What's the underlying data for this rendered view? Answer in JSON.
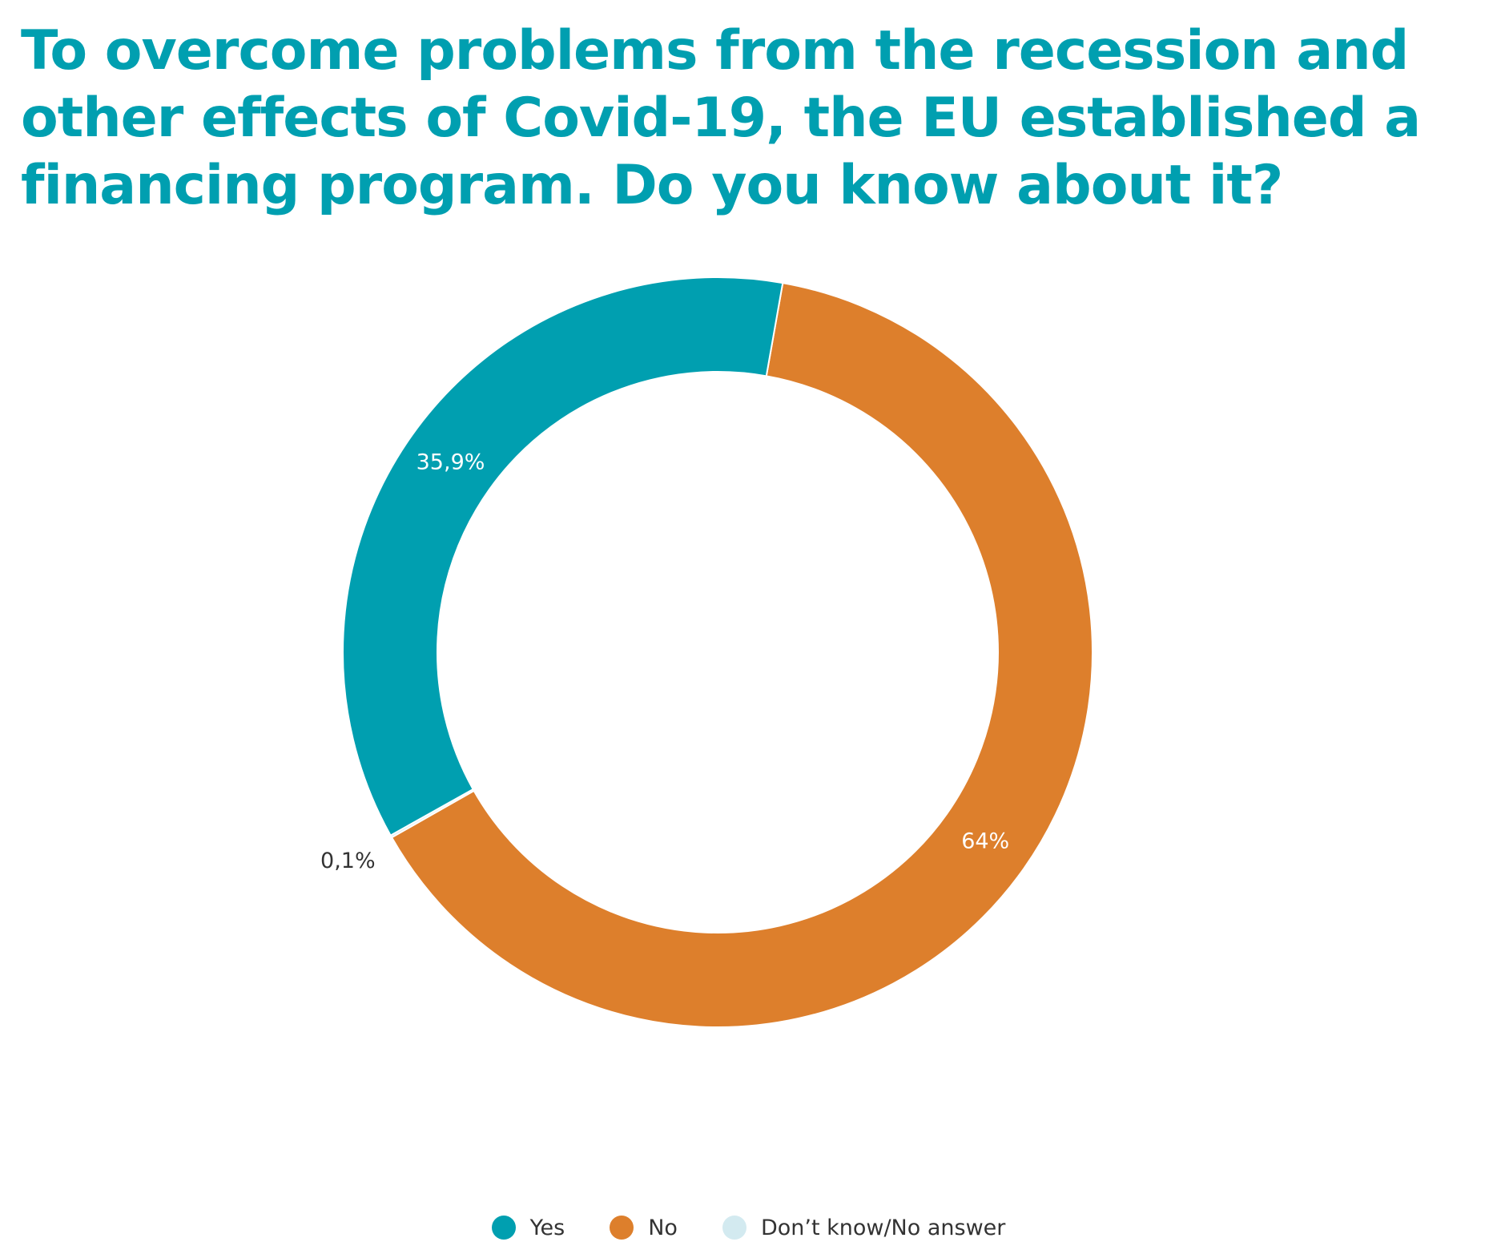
{
  "chart_data": {
    "type": "pie",
    "title": "To overcome problems from the recession and other effects of Covid-19, the EU established a financing program. Do you know about it?",
    "categories": [
      "Yes",
      "No",
      "Don’t know/No answer"
    ],
    "values": [
      35.9,
      64,
      0.1
    ],
    "data_labels": [
      "35,9%",
      "64%",
      "0,1%"
    ],
    "colors": [
      "#009fb0",
      "#dd7f2c",
      "#d3eaf0"
    ],
    "donut": true,
    "legend_position": "bottom"
  }
}
